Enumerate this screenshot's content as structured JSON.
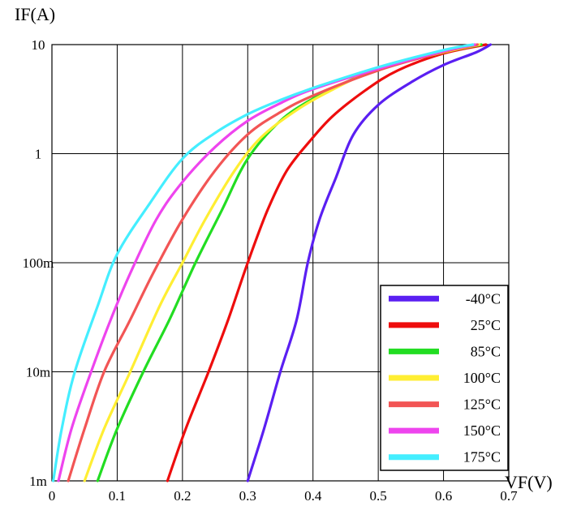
{
  "chart_data": {
    "type": "line",
    "title": "",
    "xlabel": "VF(V)",
    "ylabel": "IF(A)",
    "x_scale": "linear",
    "y_scale": "log",
    "xlim": [
      0,
      0.7
    ],
    "ylim": [
      0.001,
      10
    ],
    "x_ticks": [
      0,
      0.1,
      0.2,
      0.3,
      0.4,
      0.5,
      0.6,
      0.7
    ],
    "x_tick_labels": [
      "0",
      "0.1",
      "0.2",
      "0.3",
      "0.4",
      "0.5",
      "0.6",
      "0.7"
    ],
    "y_ticks": [
      0.001,
      0.01,
      0.1,
      1,
      10
    ],
    "y_tick_labels": [
      "1m",
      "10m",
      "100m",
      "1",
      "10"
    ],
    "grid": true,
    "legend_position": "bottom-right",
    "series": [
      {
        "name": "-40°C",
        "color": "#5a1ff2",
        "points": [
          [
            0.3,
            0.001
          ],
          [
            0.325,
            0.003
          ],
          [
            0.35,
            0.01
          ],
          [
            0.375,
            0.03
          ],
          [
            0.392,
            0.1
          ],
          [
            0.41,
            0.25
          ],
          [
            0.435,
            0.6
          ],
          [
            0.462,
            1.5
          ],
          [
            0.5,
            2.8
          ],
          [
            0.55,
            4.5
          ],
          [
            0.6,
            6.5
          ],
          [
            0.65,
            8.5
          ],
          [
            0.672,
            10
          ]
        ]
      },
      {
        "name": "25°C",
        "color": "#ee0d0d",
        "points": [
          [
            0.177,
            0.001
          ],
          [
            0.205,
            0.003
          ],
          [
            0.24,
            0.01
          ],
          [
            0.27,
            0.03
          ],
          [
            0.3,
            0.1
          ],
          [
            0.33,
            0.3
          ],
          [
            0.36,
            0.7
          ],
          [
            0.395,
            1.3
          ],
          [
            0.43,
            2.2
          ],
          [
            0.48,
            3.8
          ],
          [
            0.53,
            5.8
          ],
          [
            0.6,
            8.3
          ],
          [
            0.665,
            10
          ]
        ]
      },
      {
        "name": "85°C",
        "color": "#22dd22",
        "points": [
          [
            0.07,
            0.001
          ],
          [
            0.1,
            0.003
          ],
          [
            0.14,
            0.01
          ],
          [
            0.18,
            0.03
          ],
          [
            0.22,
            0.1
          ],
          [
            0.26,
            0.3
          ],
          [
            0.3,
            0.9
          ],
          [
            0.35,
            2.0
          ],
          [
            0.4,
            3.2
          ],
          [
            0.45,
            4.5
          ],
          [
            0.5,
            6.0
          ],
          [
            0.6,
            8.5
          ],
          [
            0.658,
            10
          ]
        ]
      },
      {
        "name": "100°C",
        "color": "#ffee33",
        "points": [
          [
            0.05,
            0.001
          ],
          [
            0.08,
            0.003
          ],
          [
            0.12,
            0.01
          ],
          [
            0.165,
            0.04
          ],
          [
            0.2,
            0.1
          ],
          [
            0.235,
            0.25
          ],
          [
            0.28,
            0.7
          ],
          [
            0.32,
            1.4
          ],
          [
            0.37,
            2.4
          ],
          [
            0.42,
            3.6
          ],
          [
            0.5,
            6.0
          ],
          [
            0.6,
            8.5
          ],
          [
            0.655,
            10
          ]
        ]
      },
      {
        "name": "125°C",
        "color": "#f25555",
        "points": [
          [
            0.025,
            0.001
          ],
          [
            0.05,
            0.003
          ],
          [
            0.08,
            0.01
          ],
          [
            0.12,
            0.03
          ],
          [
            0.155,
            0.08
          ],
          [
            0.2,
            0.25
          ],
          [
            0.25,
            0.7
          ],
          [
            0.3,
            1.5
          ],
          [
            0.35,
            2.4
          ],
          [
            0.4,
            3.4
          ],
          [
            0.5,
            5.8
          ],
          [
            0.6,
            8.6
          ],
          [
            0.652,
            10
          ]
        ]
      },
      {
        "name": "150°C",
        "color": "#ee44ee",
        "points": [
          [
            0.01,
            0.001
          ],
          [
            0.03,
            0.003
          ],
          [
            0.06,
            0.01
          ],
          [
            0.09,
            0.03
          ],
          [
            0.12,
            0.08
          ],
          [
            0.16,
            0.25
          ],
          [
            0.2,
            0.55
          ],
          [
            0.25,
            1.15
          ],
          [
            0.3,
            2.0
          ],
          [
            0.35,
            2.9
          ],
          [
            0.4,
            3.9
          ],
          [
            0.5,
            6.0
          ],
          [
            0.6,
            8.7
          ],
          [
            0.648,
            10
          ]
        ]
      },
      {
        "name": "175°C",
        "color": "#44eeff",
        "points": [
          [
            0.002,
            0.001
          ],
          [
            0.015,
            0.003
          ],
          [
            0.035,
            0.01
          ],
          [
            0.07,
            0.04
          ],
          [
            0.1,
            0.12
          ],
          [
            0.15,
            0.35
          ],
          [
            0.2,
            0.9
          ],
          [
            0.25,
            1.55
          ],
          [
            0.3,
            2.3
          ],
          [
            0.35,
            3.1
          ],
          [
            0.4,
            4.0
          ],
          [
            0.5,
            6.2
          ],
          [
            0.6,
            8.9
          ],
          [
            0.645,
            10
          ]
        ]
      }
    ]
  }
}
